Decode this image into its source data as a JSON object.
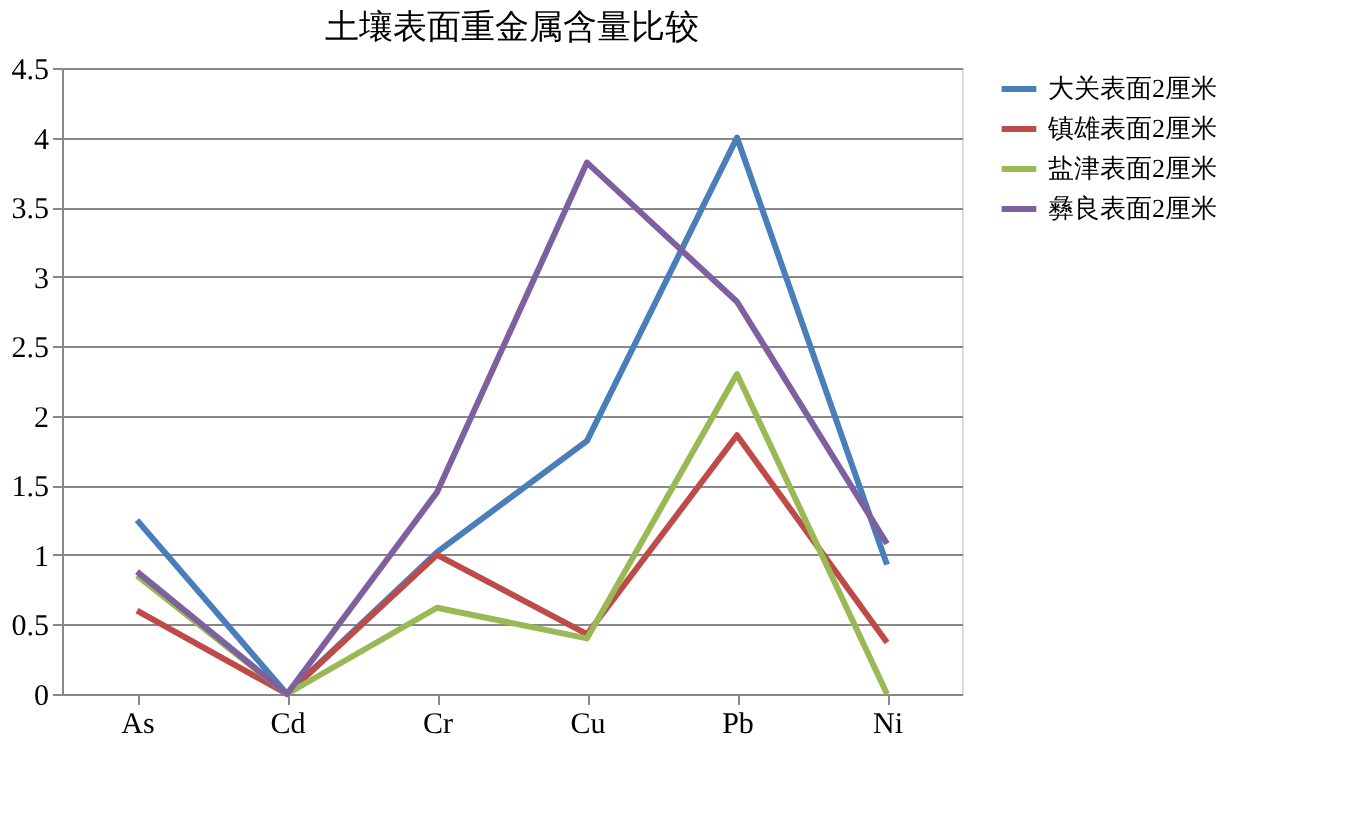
{
  "chart_data": {
    "type": "line",
    "title": "土壤表面重金属含量比较",
    "categories": [
      "As",
      "Cd",
      "Cr",
      "Cu",
      "Pb",
      "Ni"
    ],
    "series": [
      {
        "name": "大关表面2厘米",
        "color": "#4a7ebb",
        "values": [
          1.25,
          0,
          1.02,
          1.82,
          4.0,
          0.93
        ]
      },
      {
        "name": "镇雄表面2厘米",
        "color": "#be4b48",
        "values": [
          0.6,
          0,
          1.0,
          0.43,
          1.86,
          0.37
        ]
      },
      {
        "name": "盐津表面2厘米",
        "color": "#98b954",
        "values": [
          0.85,
          0,
          0.62,
          0.4,
          2.3,
          0
        ]
      },
      {
        "name": "彝良表面2厘米",
        "color": "#7d60a0",
        "values": [
          0.88,
          0,
          1.45,
          3.82,
          2.82,
          1.08
        ]
      }
    ],
    "ylim": [
      0,
      4.5
    ],
    "yticks": [
      0,
      0.5,
      1,
      1.5,
      2,
      2.5,
      3,
      3.5,
      4,
      4.5
    ],
    "grid": "y",
    "legend": "right",
    "marker": "none",
    "line_style": "solid"
  }
}
